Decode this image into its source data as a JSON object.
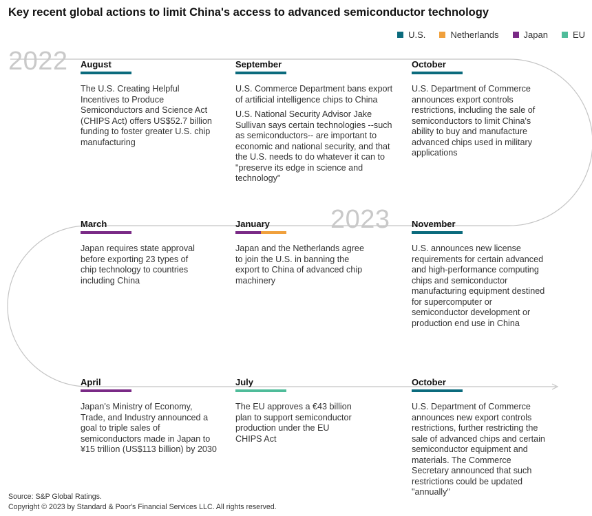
{
  "title": "Key recent global actions to limit China's access to advanced semiconductor technology",
  "legend": [
    {
      "label": "U.S.",
      "color": "#0b6b7d"
    },
    {
      "label": "Netherlands",
      "color": "#f0a03c"
    },
    {
      "label": "Japan",
      "color": "#7a2a86"
    },
    {
      "label": "EU",
      "color": "#4fbc9a"
    }
  ],
  "years": {
    "y2022": "2022",
    "y2023": "2023"
  },
  "events": [
    {
      "month": "August",
      "colors": [
        "#0b6b7d"
      ],
      "paragraphs": [
        "The U.S. Creating Helpful Incentives to Produce Semiconductors and Science Act (CHIPS Act) offers US$52.7 billion funding to foster greater U.S. chip manufacturing"
      ]
    },
    {
      "month": "September",
      "colors": [
        "#0b6b7d"
      ],
      "paragraphs": [
        "U.S. Commerce Department bans export of artificial intelligence chips to China",
        "U.S. National Security Advisor Jake Sullivan says certain technologies --such as semiconductors-- are important to economic and national security, and that the U.S. needs to do whatever it can to \"preserve its edge in science and technology\""
      ]
    },
    {
      "month": "October",
      "colors": [
        "#0b6b7d"
      ],
      "paragraphs": [
        "U.S. Department of Commerce announces export controls restrictions, including the sale of semiconductors to limit China's ability to buy and manufacture advanced chips used in military applications"
      ]
    },
    {
      "month": "March",
      "colors": [
        "#7a2a86"
      ],
      "paragraphs": [
        "Japan requires state approval before exporting 23 types of chip technology to countries including China"
      ]
    },
    {
      "month": "January",
      "colors": [
        "#7a2a86",
        "#f0a03c"
      ],
      "paragraphs": [
        "Japan and the Netherlands agree to join the U.S. in banning the export to China of advanced chip machinery"
      ]
    },
    {
      "month": "November",
      "colors": [
        "#0b6b7d"
      ],
      "paragraphs": [
        "U.S. announces new license requirements for certain advanced and high-performance computing chips and semiconductor manufacturing equipment destined for supercomputer or semiconductor development or production end use in China"
      ]
    },
    {
      "month": "April",
      "colors": [
        "#7a2a86"
      ],
      "paragraphs": [
        "Japan's Ministry of Economy, Trade, and Industry announced a goal to triple sales of semiconductors made in Japan to ¥15 trillion (US$113 billion) by 2030"
      ]
    },
    {
      "month": "July",
      "colors": [
        "#4fbc9a"
      ],
      "paragraphs": [
        "The EU approves a €43 billion plan to support semiconductor production under the EU CHIPS Act"
      ]
    },
    {
      "month": "October",
      "colors": [
        "#0b6b7d"
      ],
      "paragraphs": [
        "U.S. Department of Commerce announces new export controls restrictions, further restricting the sale of advanced chips and certain semiconductor equipment and materials. The Commerce Secretary announced that such restrictions could be updated \"annually\""
      ]
    }
  ],
  "footer": {
    "source": "Source: S&P Global Ratings.",
    "copyright": "Copyright © 2023 by Standard & Poor's Financial Services LLC. All rights reserved."
  }
}
